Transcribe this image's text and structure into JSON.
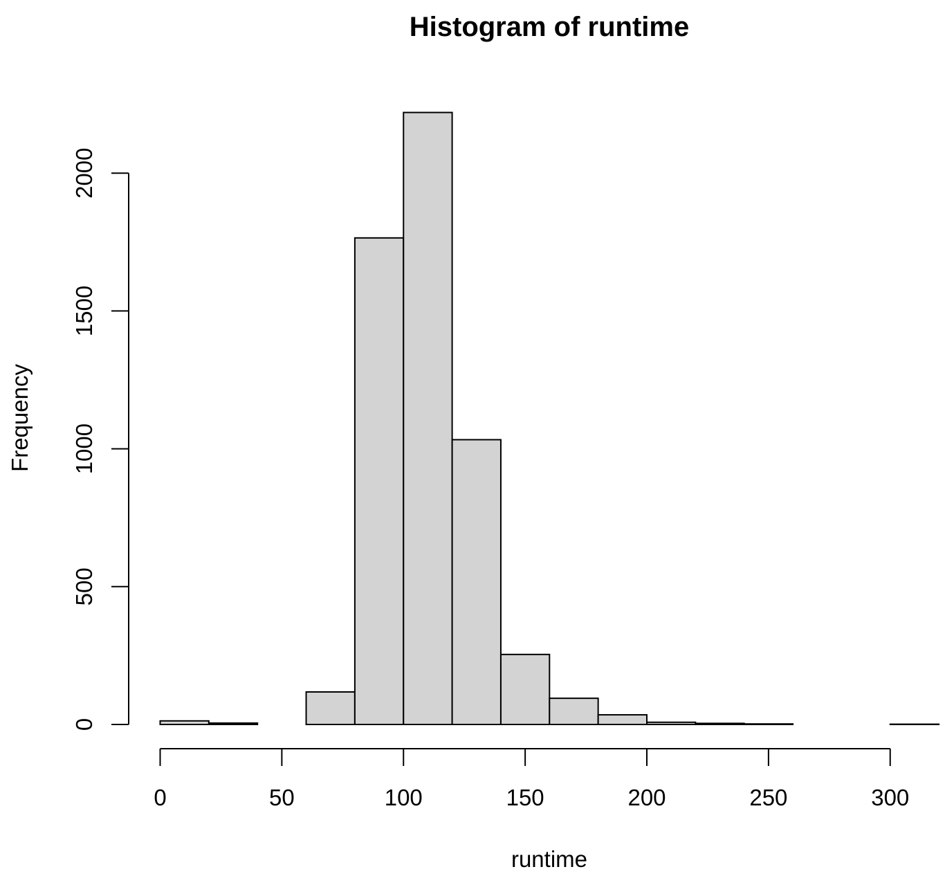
{
  "chart_data": {
    "type": "bar",
    "title": "Histogram of runtime",
    "xlabel": "runtime",
    "ylabel": "Frequency",
    "bin_edges": [
      0,
      20,
      40,
      60,
      80,
      100,
      120,
      140,
      160,
      180,
      200,
      220,
      240,
      260,
      280,
      300,
      320
    ],
    "values": [
      13,
      5,
      0,
      118,
      1765,
      2220,
      1033,
      254,
      95,
      35,
      8,
      4,
      2,
      0,
      0,
      1
    ],
    "xlim": [
      0,
      320
    ],
    "ylim": [
      0,
      2220
    ],
    "x_ticks": [
      0,
      50,
      100,
      150,
      200,
      250,
      300
    ],
    "y_ticks": [
      0,
      500,
      1000,
      1500,
      2000
    ],
    "x_tick_labels": [
      "0",
      "50",
      "100",
      "150",
      "200",
      "250",
      "300"
    ],
    "y_tick_labels": [
      "0",
      "500",
      "1000",
      "1500",
      "2000"
    ],
    "bar_color": "#d3d3d3",
    "edge_color": "#000000",
    "grid": false,
    "legend": false
  }
}
